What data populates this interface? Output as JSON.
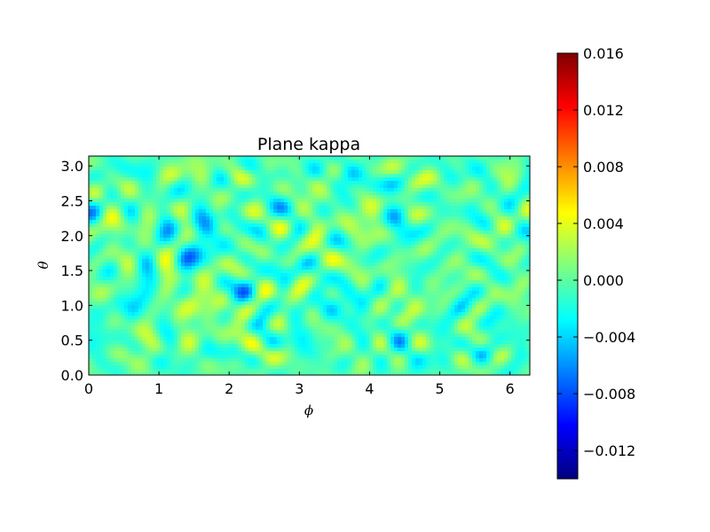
{
  "chart_data": {
    "type": "heatmap",
    "title": "Plane kappa",
    "xlabel": "ϕ",
    "ylabel": "θ",
    "xlim": [
      0,
      6.2832
    ],
    "ylim": [
      0,
      3.1416
    ],
    "xticks": [
      "0",
      "1",
      "2",
      "3",
      "4",
      "5",
      "6"
    ],
    "yticks": [
      "0.0",
      "0.5",
      "1.0",
      "1.5",
      "2.0",
      "2.5",
      "3.0"
    ],
    "colorbar": {
      "colormap": "jet",
      "range": [
        -0.014,
        0.016
      ],
      "ticks": [
        "−0.012",
        "−0.008",
        "−0.004",
        "0.000",
        "0.004",
        "0.008",
        "0.012",
        "0.016"
      ],
      "colors": [
        "#00007f",
        "#0000ff",
        "#007fff",
        "#00ffff",
        "#7fff7f",
        "#ffff00",
        "#ff7f00",
        "#ff0000",
        "#7f0000"
      ]
    },
    "field_description": "noisy convergence field (kappa) sampled over phi in [0, 2pi] and theta in [0, pi]; mostly cyan/green with scattered red peaks and blue troughs"
  }
}
